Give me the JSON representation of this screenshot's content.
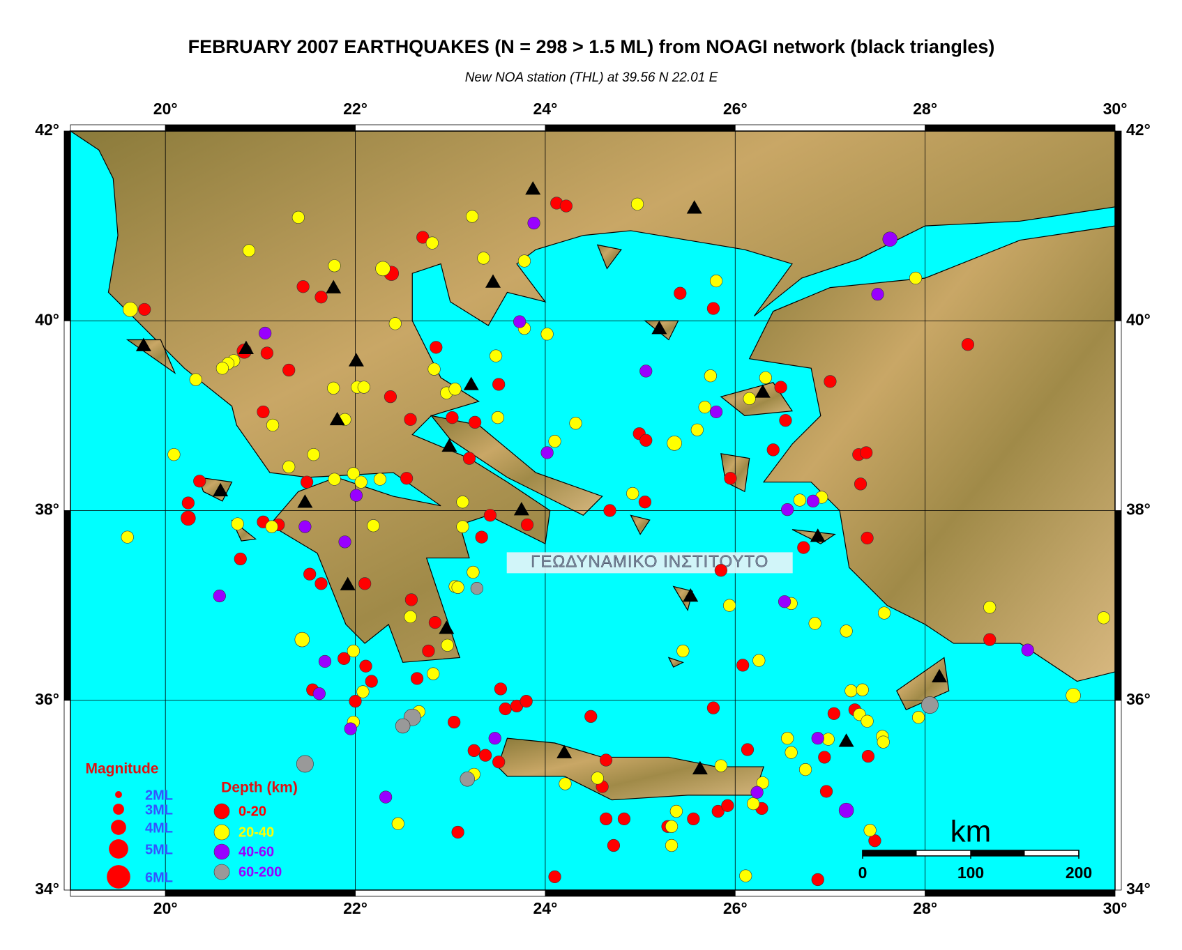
{
  "chart_data": {
    "type": "map",
    "title": "FEBRUARY 2007 EARTHQUAKES (N = 298 > 1.5 ML) from NOAGI network (black triangles)",
    "subtitle": "New NOA station (THL) at 39.56 N  22.01 E",
    "xlim": [
      19,
      30
    ],
    "ylim": [
      34,
      42
    ],
    "xticks": [
      {
        "value": 20,
        "label": "20°"
      },
      {
        "value": 22,
        "label": "22°"
      },
      {
        "value": 24,
        "label": "24°"
      },
      {
        "value": 26,
        "label": "26°"
      },
      {
        "value": 28,
        "label": "28°"
      },
      {
        "value": 30,
        "label": "30°"
      }
    ],
    "yticks": [
      {
        "value": 34,
        "label": "34°"
      },
      {
        "value": 36,
        "label": "36°"
      },
      {
        "value": 38,
        "label": "38°"
      },
      {
        "value": 40,
        "label": "40°"
      },
      {
        "value": 42,
        "label": "42°"
      }
    ],
    "grid": true,
    "series": [
      {
        "name": "0-20",
        "color": "#ff0000",
        "x": [
          19.78,
          21.45,
          21.64,
          22.38,
          22.71,
          24.12,
          24.22,
          25.42,
          25.77,
          28.45,
          27.0,
          26.48,
          26.53,
          26.4,
          27.3,
          27.38,
          27.32,
          25.95,
          24.99,
          25.06,
          25.05,
          24.68,
          27.39,
          26.72,
          20.83,
          21.07,
          21.3,
          21.03,
          22.37,
          22.58,
          22.85,
          23.02,
          23.26,
          23.51,
          23.2,
          22.54,
          21.49,
          20.36,
          20.24,
          20.24,
          21.03,
          20.79,
          21.52,
          21.64,
          22.1,
          22.59,
          22.84,
          22.77,
          22.65,
          22.11,
          22.17,
          21.88,
          21.55,
          22.0,
          23.04,
          23.25,
          23.37,
          23.53,
          23.58,
          23.7,
          23.8,
          23.51,
          24.48,
          24.64,
          24.6,
          24.64,
          24.83,
          24.72,
          24.1,
          23.08,
          25.29,
          25.56,
          25.82,
          25.92,
          25.77,
          26.08,
          26.13,
          26.28,
          26.96,
          26.94,
          27.04,
          27.26,
          27.4,
          27.47,
          26.87,
          28.68,
          25.85,
          23.42,
          23.81,
          23.33,
          21.19
        ],
        "y": [
          40.12,
          40.36,
          40.25,
          40.5,
          40.88,
          41.24,
          41.21,
          40.29,
          40.13,
          39.75,
          39.36,
          39.3,
          38.95,
          38.64,
          38.59,
          38.61,
          38.28,
          38.34,
          38.81,
          38.74,
          38.09,
          38.0,
          37.71,
          37.61,
          39.68,
          39.66,
          39.48,
          39.04,
          39.2,
          38.96,
          39.72,
          38.98,
          38.93,
          39.33,
          38.55,
          38.34,
          38.3,
          38.31,
          38.08,
          37.92,
          37.88,
          37.49,
          37.33,
          37.23,
          37.23,
          37.06,
          36.82,
          36.52,
          36.23,
          36.36,
          36.2,
          36.44,
          36.11,
          35.99,
          35.77,
          35.47,
          35.42,
          36.12,
          35.91,
          35.94,
          35.99,
          35.35,
          35.83,
          35.37,
          35.09,
          34.75,
          34.75,
          34.47,
          34.14,
          34.61,
          34.67,
          34.75,
          34.83,
          34.89,
          35.92,
          36.37,
          35.48,
          34.86,
          35.04,
          35.4,
          35.86,
          35.9,
          35.41,
          34.52,
          34.11,
          36.64,
          37.37,
          37.95,
          37.85,
          37.72,
          37.85
        ],
        "mag": [
          3,
          3,
          3,
          3.5,
          3,
          3,
          3,
          3,
          3,
          3,
          3,
          3,
          3,
          3,
          3,
          3,
          3,
          3,
          3,
          3,
          3,
          3,
          3,
          3,
          3.5,
          3,
          3,
          3,
          3,
          3,
          3,
          3,
          3,
          3,
          3,
          3,
          3,
          3,
          3,
          3.5,
          3,
          3,
          3,
          3,
          3,
          3,
          3,
          3,
          3,
          3,
          3,
          3,
          3,
          3,
          3,
          3,
          3,
          3,
          3,
          3,
          3,
          3,
          3,
          3,
          3,
          3,
          3,
          3,
          3,
          3,
          3,
          3,
          3,
          3,
          3,
          3,
          3,
          3,
          3,
          3,
          3,
          3,
          3,
          3,
          3,
          3,
          3,
          3,
          3,
          3,
          3
        ]
      },
      {
        "name": "20-40",
        "color": "#ffff00",
        "x": [
          19.63,
          20.09,
          19.6,
          21.4,
          20.88,
          21.78,
          22.29,
          22.81,
          23.23,
          23.35,
          23.78,
          24.97,
          25.8,
          27.9,
          24.02,
          23.78,
          23.48,
          22.42,
          22.83,
          22.02,
          22.09,
          21.77,
          21.89,
          21.13,
          20.72,
          20.66,
          20.6,
          20.32,
          21.56,
          21.3,
          21.78,
          21.98,
          22.06,
          22.26,
          20.76,
          21.12,
          22.19,
          22.96,
          23.05,
          23.5,
          24.32,
          24.1,
          25.36,
          25.6,
          25.68,
          25.74,
          26.15,
          26.32,
          24.92,
          26.68,
          26.91,
          23.13,
          23.13,
          23.24,
          23.05,
          23.08,
          22.97,
          22.82,
          22.58,
          21.44,
          21.98,
          22.08,
          21.98,
          22.67,
          22.45,
          23.25,
          24.21,
          24.55,
          25.85,
          25.38,
          25.33,
          25.33,
          25.45,
          25.94,
          26.25,
          26.59,
          26.84,
          27.17,
          27.57,
          26.55,
          26.59,
          26.74,
          26.98,
          27.22,
          27.34,
          27.31,
          27.39,
          27.55,
          27.56,
          27.93,
          27.42,
          26.29,
          26.19,
          26.11,
          28.68,
          29.56,
          29.88
        ],
        "y": [
          40.12,
          38.59,
          37.72,
          41.09,
          40.74,
          40.58,
          40.55,
          40.82,
          41.1,
          40.66,
          40.63,
          41.23,
          40.42,
          40.45,
          39.86,
          39.92,
          39.63,
          39.97,
          39.49,
          39.3,
          39.3,
          39.29,
          38.96,
          38.9,
          39.58,
          39.55,
          39.5,
          39.38,
          38.59,
          38.46,
          38.33,
          38.39,
          38.3,
          38.33,
          37.86,
          37.83,
          37.84,
          39.24,
          39.28,
          38.98,
          38.92,
          38.73,
          38.71,
          38.85,
          39.09,
          39.42,
          39.18,
          39.4,
          38.18,
          38.11,
          38.14,
          38.09,
          37.83,
          37.35,
          37.2,
          37.19,
          36.58,
          36.28,
          36.88,
          36.64,
          36.52,
          36.09,
          35.77,
          35.88,
          34.7,
          35.22,
          35.12,
          35.18,
          35.31,
          34.83,
          34.67,
          34.47,
          36.52,
          37.0,
          36.42,
          37.02,
          36.81,
          36.73,
          36.92,
          35.6,
          35.45,
          35.27,
          35.59,
          36.1,
          36.11,
          35.85,
          35.78,
          35.62,
          35.56,
          35.82,
          34.63,
          35.13,
          34.91,
          34.15,
          36.98,
          36.05,
          36.87
        ],
        "mag": [
          3.5,
          3,
          3,
          3,
          3,
          3,
          3.5,
          3,
          3,
          3,
          3,
          3,
          3,
          3,
          3,
          3,
          3,
          3,
          3,
          3,
          3,
          3,
          3,
          3,
          3,
          3,
          3,
          3,
          3,
          3,
          3,
          3,
          3,
          3,
          3,
          3,
          3,
          3,
          3,
          3,
          3,
          3,
          3.5,
          3,
          3,
          3,
          3,
          3,
          3,
          3,
          3,
          3,
          3,
          3,
          3,
          3,
          3,
          3,
          3,
          3.5,
          3,
          3,
          3,
          3,
          3,
          3,
          3,
          3,
          3,
          3,
          3,
          3,
          3,
          3,
          3,
          3,
          3,
          3,
          3,
          3,
          3,
          3,
          3,
          3,
          3,
          3,
          3,
          3,
          3,
          3,
          3,
          3,
          3,
          3,
          3,
          3.5,
          3
        ]
      },
      {
        "name": "40-60",
        "color": "#9900ff",
        "x": [
          23.88,
          27.63,
          27.5,
          21.05,
          23.73,
          25.06,
          25.8,
          24.02,
          22.01,
          21.47,
          21.89,
          20.57,
          21.68,
          21.62,
          21.95,
          22.32,
          23.47,
          26.55,
          26.82,
          26.52,
          26.23,
          26.87,
          27.17,
          29.08
        ],
        "y": [
          41.03,
          40.86,
          40.28,
          39.87,
          39.99,
          39.47,
          39.04,
          38.61,
          38.16,
          37.83,
          37.67,
          37.1,
          36.41,
          36.07,
          35.7,
          34.98,
          35.6,
          38.01,
          38.1,
          37.04,
          35.03,
          35.6,
          34.84,
          36.53
        ],
        "mag": [
          3,
          3.5,
          3,
          3,
          3,
          3,
          3,
          3,
          3,
          3,
          3,
          3,
          3,
          3,
          3,
          3,
          3,
          3,
          3,
          3,
          3,
          3,
          3.5,
          3
        ]
      },
      {
        "name": "60-200",
        "color": "#999999",
        "x": [
          23.28,
          22.6,
          22.5,
          21.47,
          23.18,
          28.05
        ],
        "y": [
          37.18,
          35.82,
          35.73,
          35.33,
          35.17,
          35.95
        ],
        "mag": [
          3,
          4,
          3.5,
          4,
          3.5,
          4
        ]
      }
    ],
    "stations": {
      "color": "#000000",
      "x": [
        19.77,
        20.85,
        22.01,
        21.77,
        21.81,
        23.45,
        23.87,
        25.57,
        25.2,
        23.22,
        22.99,
        26.29,
        20.58,
        21.47,
        23.75,
        21.92,
        22.96,
        25.53,
        26.87,
        28.15,
        27.17,
        24.2,
        25.63
      ],
      "y": [
        39.74,
        39.71,
        39.58,
        40.35,
        38.96,
        40.41,
        41.39,
        41.19,
        39.92,
        39.33,
        38.68,
        39.25,
        38.21,
        38.09,
        38.01,
        37.22,
        36.76,
        37.1,
        37.73,
        36.25,
        35.57,
        35.45,
        35.28
      ]
    },
    "size_legend": {
      "title": "Magnitude",
      "items": [
        {
          "value": 2,
          "label": "2ML"
        },
        {
          "value": 3,
          "label": "3ML"
        },
        {
          "value": 4,
          "label": "4ML"
        },
        {
          "value": 5,
          "label": "5ML"
        },
        {
          "value": 6,
          "label": "6ML"
        }
      ]
    },
    "depth_legend_title": "Depth (km)",
    "scale_bar": {
      "unit": "km",
      "ticks": [
        0,
        100,
        200
      ]
    },
    "watermark": "ΓΕΩΔΥΝΑΜΙΚΟ ΙΝΣΤΙΤΟΥΤΟ"
  }
}
